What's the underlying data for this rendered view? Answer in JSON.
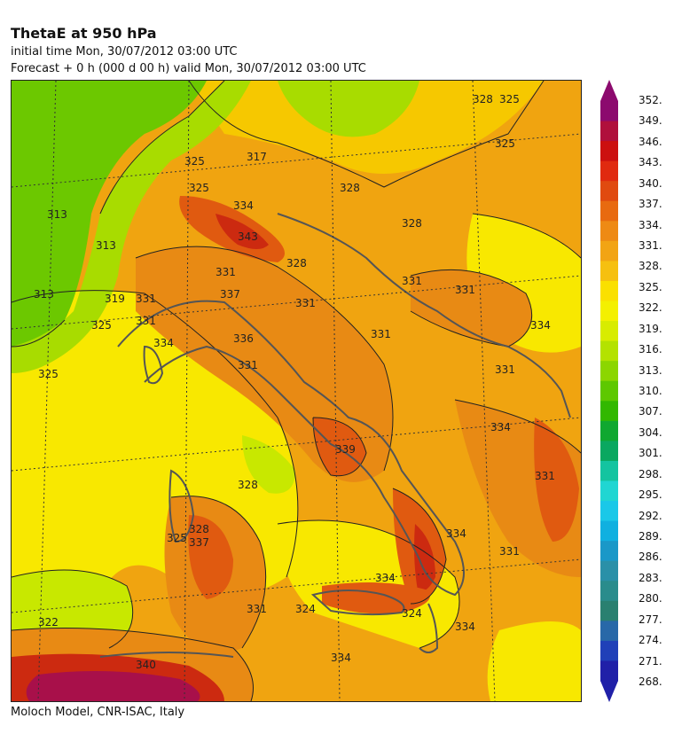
{
  "header": {
    "title": "ThetaE at 950 hPa",
    "initial_time": "initial time  Mon, 30/07/2012  03:00 UTC",
    "forecast": "Forecast  +    0 h  (000 d 00 h)  valid Mon, 30/07/2012 03:00 UTC"
  },
  "footer": {
    "credit": "Moloch Model, CNR-ISAC, Italy"
  },
  "colorbar": {
    "levels": [
      "352.",
      "349.",
      "346.",
      "343.",
      "340.",
      "337.",
      "334.",
      "331.",
      "328.",
      "325.",
      "322.",
      "319.",
      "316.",
      "313.",
      "310.",
      "307.",
      "304.",
      "301.",
      "298.",
      "295.",
      "292.",
      "289.",
      "286.",
      "283.",
      "280.",
      "277.",
      "274.",
      "271.",
      "268."
    ],
    "colors": [
      "#8c0a6e",
      "#b0103c",
      "#cc1010",
      "#e02a10",
      "#e04a10",
      "#e86a10",
      "#ee8a14",
      "#f2a414",
      "#f6c010",
      "#fae000",
      "#f4f000",
      "#d8ec00",
      "#b4e200",
      "#8cd600",
      "#5ec800",
      "#32b800",
      "#10a830",
      "#0aa860",
      "#14c4a0",
      "#20d6d2",
      "#1ac8e8",
      "#10b0e0",
      "#1a98c8",
      "#2a90a8",
      "#2a8c8c",
      "#2a8070",
      "#2868a8",
      "#2040b8",
      "#2020a8"
    ]
  },
  "map": {
    "contour_labels": [
      "325",
      "325",
      "325",
      "325",
      "325",
      "325",
      "325",
      "322",
      "328",
      "328",
      "328",
      "328",
      "328",
      "328",
      "331",
      "331",
      "331",
      "331",
      "331",
      "331",
      "331",
      "331",
      "331",
      "331",
      "331",
      "331",
      "334",
      "334",
      "334",
      "334",
      "334",
      "334",
      "334",
      "334",
      "336",
      "337",
      "337",
      "339",
      "340",
      "343",
      "313",
      "313",
      "313",
      "319",
      "324",
      "324",
      "317"
    ],
    "colors": {
      "yellow": "#f8e800",
      "light_yellow": "#fff000",
      "yellow_orange": "#f6c800",
      "orange": "#f0a410",
      "dark_orange": "#e88a14",
      "red_orange": "#e05a10",
      "red": "#cc2a10",
      "magenta": "#a8104a",
      "green": "#6cc800",
      "light_green": "#a8dc00",
      "lime": "#c8e800",
      "contour": "#222222",
      "coast": "#555555",
      "grid": "#333333"
    }
  }
}
